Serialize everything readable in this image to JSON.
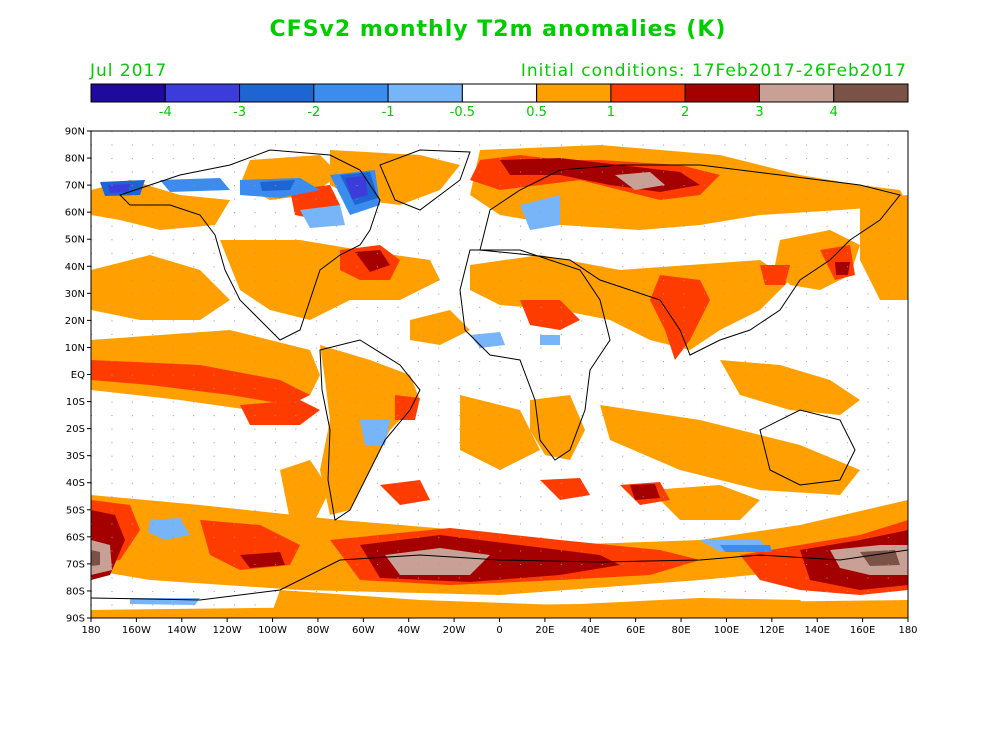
{
  "header": {
    "title": "CFSv2 monthly T2m anomalies (K)",
    "valid_month": "Jul 2017",
    "initial_conditions": "Initial conditions: 17Feb2017-26Feb2017"
  },
  "colorbar": {
    "colors": [
      "#1f0aa0",
      "#3c3cdc",
      "#1e64d2",
      "#3c8cf0",
      "#78b4f8",
      "#ffffff",
      "#ffa000",
      "#ff3c00",
      "#a50000",
      "#c8a096",
      "#7a5246"
    ],
    "labels": [
      "-4",
      "-3",
      "-2",
      "-1",
      "-0.5",
      "0.5",
      "1",
      "2",
      "3",
      "4"
    ]
  },
  "map": {
    "lat_ticks": [
      "90N",
      "80N",
      "70N",
      "60N",
      "50N",
      "40N",
      "30N",
      "20N",
      "10N",
      "EQ",
      "10S",
      "20S",
      "30S",
      "40S",
      "50S",
      "60S",
      "70S",
      "80S",
      "90S"
    ],
    "lon_ticks": [
      "180",
      "160W",
      "140W",
      "120W",
      "100W",
      "80W",
      "60W",
      "40W",
      "20W",
      "0",
      "20E",
      "40E",
      "60E",
      "80E",
      "100E",
      "120E",
      "140E",
      "160E",
      "180"
    ],
    "anomaly_regions": [
      {
        "name": "tropical-east-pacific-warm",
        "category": "1"
      },
      {
        "name": "equatorial-pacific-warm",
        "category": "2"
      },
      {
        "name": "north-pacific-warm",
        "category": "1"
      },
      {
        "name": "southern-ocean-warm-band",
        "category": "1"
      },
      {
        "name": "ross-sea-hot",
        "category": "4"
      },
      {
        "name": "weddell-sea-hot",
        "category": "4"
      },
      {
        "name": "east-antarctic-coast-hot",
        "category": "4"
      },
      {
        "name": "arctic-siberia-hot",
        "category": "3"
      },
      {
        "name": "greenland-baffin-cold",
        "category": "-3"
      },
      {
        "name": "alaska-beaufort-cold",
        "category": "-3"
      },
      {
        "name": "north-africa-middle-east-warm",
        "category": "2"
      },
      {
        "name": "india-warm",
        "category": "2"
      },
      {
        "name": "south-pacific-cold-patch",
        "category": "-1"
      },
      {
        "name": "southern-indian-ocean-cold-patch",
        "category": "-1"
      }
    ]
  }
}
